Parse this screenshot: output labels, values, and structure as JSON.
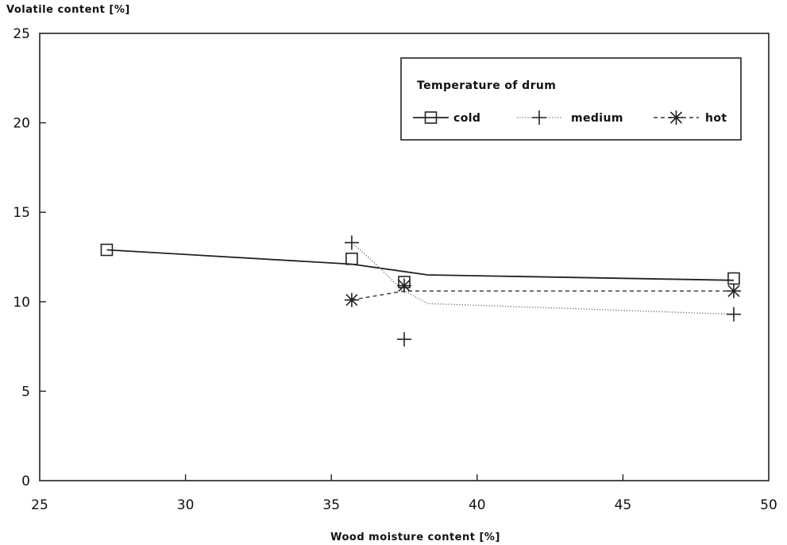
{
  "chart_data": {
    "type": "line",
    "ylabel": "Volatile content  [%]",
    "xlabel": "Wood moisture content  [%]",
    "xlim": [
      25,
      50
    ],
    "ylim": [
      0,
      25
    ],
    "xticks": [
      25,
      30,
      35,
      40,
      45,
      50
    ],
    "yticks": [
      0,
      5,
      10,
      15,
      20,
      25
    ],
    "grid": false,
    "legend": {
      "title": "Temperature of drum",
      "placement": "top-right"
    },
    "series": [
      {
        "name": "cold",
        "marker": "square",
        "line_style": "solid",
        "points": [
          {
            "x": 27.3,
            "y": 12.9
          },
          {
            "x": 35.7,
            "y": 12.4
          },
          {
            "x": 37.5,
            "y": 11.1
          },
          {
            "x": 48.8,
            "y": 11.3
          }
        ],
        "curve": [
          {
            "x": 27.3,
            "y": 12.9
          },
          {
            "x": 35.7,
            "y": 12.1
          },
          {
            "x": 38.3,
            "y": 11.5
          },
          {
            "x": 48.8,
            "y": 11.2
          }
        ]
      },
      {
        "name": "medium",
        "marker": "plus",
        "line_style": "dotted",
        "points": [
          {
            "x": 35.7,
            "y": 13.3
          },
          {
            "x": 37.5,
            "y": 7.9
          },
          {
            "x": 48.8,
            "y": 9.3
          }
        ],
        "curve": [
          {
            "x": 35.7,
            "y": 13.3
          },
          {
            "x": 36.4,
            "y": 12.3
          },
          {
            "x": 37.4,
            "y": 10.7
          },
          {
            "x": 38.3,
            "y": 9.9
          },
          {
            "x": 48.8,
            "y": 9.3
          }
        ]
      },
      {
        "name": "hot",
        "marker": "star",
        "line_style": "dashed",
        "points": [
          {
            "x": 35.7,
            "y": 10.1
          },
          {
            "x": 37.5,
            "y": 10.9
          },
          {
            "x": 48.8,
            "y": 10.6
          }
        ],
        "curve": [
          {
            "x": 35.7,
            "y": 10.1
          },
          {
            "x": 37.5,
            "y": 10.6
          },
          {
            "x": 48.8,
            "y": 10.6
          }
        ]
      }
    ]
  }
}
